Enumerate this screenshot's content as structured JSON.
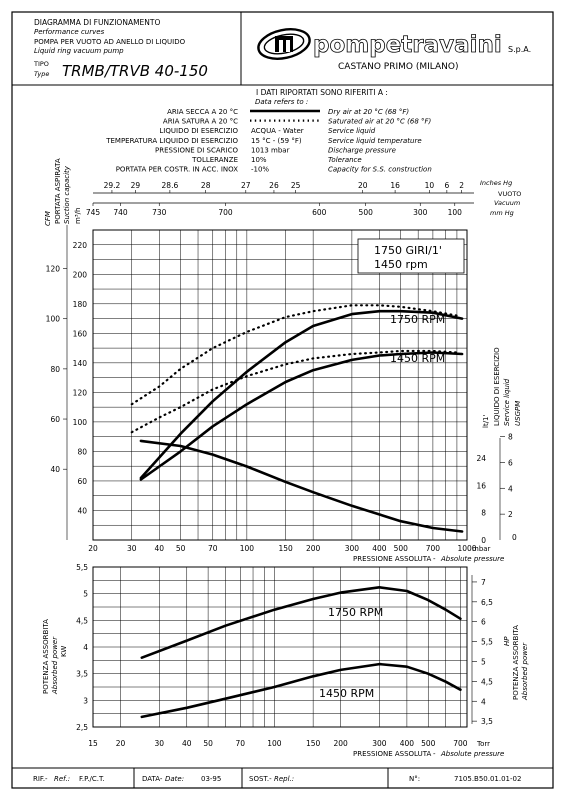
{
  "header": {
    "title_it": "DIAGRAMMA DI FUNZIONAMENTO",
    "title_en": "Performance curves",
    "subtitle_it": "POMPA PER VUOTO AD ANELLO DI LIQUIDO",
    "subtitle_en": "Liquid ring vacuum pump",
    "type_label_it": "TIPO",
    "type_label_en": "Type",
    "model": "TRMB/TRVB 40-150",
    "brand": "pompetravaini",
    "brand_suffix": "S.p.A.",
    "location": "CASTANO PRIMO  (MILANO)"
  },
  "conditions": {
    "heading_it": "I DATI RIPORTATI SONO RIFERITI A :",
    "heading_en": "Data refers to :",
    "rows": [
      {
        "it": "ARIA SECCA A 20 °C",
        "value": "",
        "en": "Dry air at 20 °C (68 °F)",
        "legend": "solid"
      },
      {
        "it": "ARIA SATURA A 20 °C",
        "value": "",
        "en": "Saturated air at 20 °C (68 °F)",
        "legend": "dotted"
      },
      {
        "it": "LIQUIDO DI ESERCIZIO",
        "value": "ACQUA - Water",
        "en": "Service liquid",
        "legend": ""
      },
      {
        "it": "TEMPERATURA LIQUIDO DI ESERCIZIO",
        "value": "15 °C - (59 °F)",
        "en": "Service liquid temperature",
        "legend": ""
      },
      {
        "it": "PRESSIONE DI SCARICO",
        "value": "1013 mbar",
        "en": "Discharge pressure",
        "legend": ""
      },
      {
        "it": "TOLLERANZE",
        "value": "10%",
        "en": "Tolerance",
        "legend": ""
      },
      {
        "it": "PORTATA PER COSTR. IN ACC. INOX",
        "value": "-10%",
        "en": "Capacity for S.S. construction",
        "legend": ""
      }
    ]
  },
  "top_axes": {
    "inhg_ticks": [
      "29.2",
      "29",
      "28.6",
      "28",
      "27",
      "26",
      "25",
      "20",
      "16",
      "10",
      "6",
      "2"
    ],
    "inhg_label": "Inches Hg",
    "vacuum_it": "VUOTO",
    "vacuum_en": "Vacuum",
    "mmhg_ticks": [
      "745",
      "740",
      "730",
      "700",
      "600",
      "500",
      "300",
      "100"
    ],
    "mmhg_label": "mm Hg"
  },
  "capacity_chart": {
    "y_label_it": "PORTATA ASPIRATA",
    "y_label_en": "Suction capacity",
    "cfm_label": "CFM",
    "m3h_label": "m³/h",
    "m3h_ticks": [
      "40",
      "60",
      "80",
      "100",
      "120",
      "140",
      "160",
      "180",
      "200",
      "220"
    ],
    "cfm_ticks": [
      "40",
      "60",
      "80",
      "100",
      "120"
    ],
    "liquid_label_it": "LIQUIDO DI ESERCIZIO",
    "liquid_label_en": "Service liquid",
    "lt_label": "lt/1'",
    "usgpm_label": "USGPM",
    "lt_ticks": [
      "0",
      "8",
      "16",
      "24"
    ],
    "usgpm_ticks": [
      "2",
      "4",
      "6",
      "8"
    ],
    "x_ticks": [
      "20",
      "30",
      "40",
      "50",
      "70",
      "100",
      "150",
      "200",
      "300",
      "400",
      "500",
      "700",
      "1000"
    ],
    "x_unit": "mbar",
    "x_label_it": "PRESSIONE ASSOLUTA",
    "x_label_en": "Absolute pressure",
    "box_line1": "1750  GIRI/1'",
    "box_line2": "1450  rpm",
    "label_1750": "1750  RPM",
    "label_1450": "1450  RPM"
  },
  "power_chart": {
    "y_label_it": "POTENZA ASSORBITA",
    "y_label_en": "Absorbed power",
    "kw_label": "KW",
    "hp_label": "HP",
    "kw_ticks": [
      "2,5",
      "3",
      "3,5",
      "4",
      "4,5",
      "5",
      "5,5"
    ],
    "hp_ticks": [
      "3,5",
      "4",
      "4,5",
      "5",
      "5,5",
      "6",
      "6,5",
      "7"
    ],
    "x_ticks": [
      "15",
      "20",
      "30",
      "40",
      "50",
      "70",
      "100",
      "150",
      "200",
      "300",
      "400",
      "500",
      "700"
    ],
    "x_unit": "Torr",
    "x_label_it": "PRESSIONE ASSOLUTA",
    "x_label_en": "Absolute pressure",
    "label_1750": "1750  RPM",
    "label_1450": "1450  RPM"
  },
  "footer": {
    "ref_label_it": "RIF.-",
    "ref_label_en": "Ref.:",
    "ref_value": "F.P./C.T.",
    "date_label_it": "DATA-",
    "date_label_en": "Date:",
    "date_value": "03-95",
    "repl_label_it": "SOST.-",
    "repl_label_en": "Repl.:",
    "repl_value": "",
    "no_label": "N°:",
    "no_value": "7105.B50.01.01-02"
  },
  "chart_data": [
    {
      "type": "line",
      "title": "",
      "xlabel": "PRESSIONE ASSOLUTA - Absolute pressure (mbar)",
      "ylabel": "PORTATA ASPIRATA - Suction capacity (m³/h)",
      "x_scale": "log",
      "xlim": [
        20,
        1000
      ],
      "ylim": [
        20,
        230
      ],
      "grid": true,
      "series": [
        {
          "name": "1750 RPM",
          "style": "solid",
          "x": [
            33,
            50,
            70,
            100,
            150,
            200,
            300,
            400,
            500,
            700,
            950
          ],
          "y": [
            62,
            92,
            114,
            134,
            154,
            165,
            173,
            175,
            175,
            174,
            170
          ]
        },
        {
          "name": "1450 RPM",
          "style": "solid",
          "x": [
            33,
            50,
            70,
            100,
            150,
            200,
            300,
            400,
            500,
            700,
            950
          ],
          "y": [
            61,
            80,
            97,
            112,
            127,
            135,
            142,
            145,
            146,
            147,
            146
          ]
        },
        {
          "name": "1750 RPM",
          "style": "dotted",
          "x": [
            30,
            40,
            50,
            70,
            100,
            150,
            200,
            300,
            400,
            500,
            700,
            900
          ],
          "y": [
            112,
            124,
            136,
            150,
            161,
            171,
            175,
            179,
            179,
            178,
            175,
            172
          ]
        },
        {
          "name": "1450 RPM",
          "style": "dotted",
          "x": [
            30,
            40,
            50,
            70,
            100,
            150,
            200,
            300,
            400,
            500,
            700,
            900
          ],
          "y": [
            93,
            103,
            110,
            122,
            131,
            139,
            143,
            146,
            147,
            148,
            148,
            147
          ]
        },
        {
          "name": "",
          "style": "solid",
          "x": [
            33,
            50,
            70,
            100,
            150,
            200,
            300,
            500,
            700,
            950
          ],
          "y": [
            49,
            47.5,
            45,
            41.5,
            37,
            34,
            30,
            25.5,
            23.5,
            22.5
          ]
        }
      ]
    },
    {
      "type": "line",
      "title": "",
      "xlabel": "PRESSIONE ASSOLUTA - Absolute pressure (Torr)",
      "ylabel": "POTENZA ASSORBITA - Absorbed power (KW)",
      "x_scale": "log",
      "xlim": [
        15,
        750
      ],
      "ylim": [
        2.5,
        5.5
      ],
      "grid": true,
      "series": [
        {
          "name": "1750 RPM",
          "x": [
            25,
            40,
            60,
            100,
            150,
            200,
            300,
            400,
            500,
            600,
            700
          ],
          "y": [
            3.8,
            4.12,
            4.4,
            4.7,
            4.9,
            5.02,
            5.12,
            5.05,
            4.88,
            4.7,
            4.53
          ]
        },
        {
          "name": "1450 RPM",
          "x": [
            25,
            40,
            60,
            100,
            150,
            200,
            300,
            400,
            500,
            600,
            700
          ],
          "y": [
            2.69,
            2.86,
            3.03,
            3.25,
            3.45,
            3.57,
            3.68,
            3.63,
            3.5,
            3.35,
            3.2
          ]
        }
      ]
    }
  ]
}
